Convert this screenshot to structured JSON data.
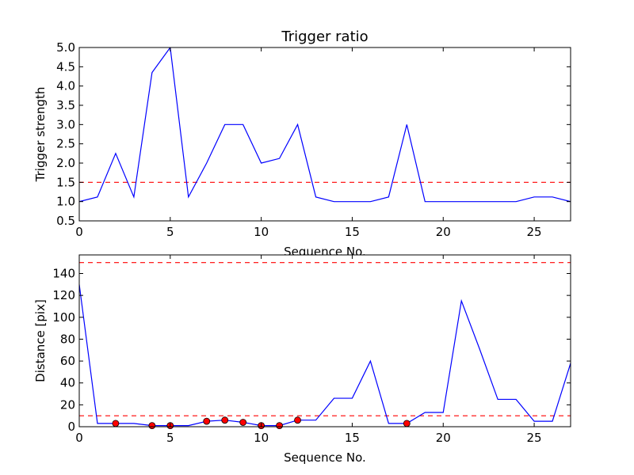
{
  "colors": {
    "line": "#0000ff",
    "threshold": "#ff0000",
    "marker_fill": "#ff0000",
    "marker_edge": "#000000",
    "axes": "#000000",
    "background": "#ffffff"
  },
  "chart_data": [
    {
      "type": "line",
      "title": "Trigger ratio",
      "xlabel": "Sequence No.",
      "ylabel": "Trigger strength",
      "xlim": [
        0,
        27
      ],
      "ylim": [
        0.5,
        5.0
      ],
      "xticks": [
        0,
        5,
        10,
        15,
        20,
        25
      ],
      "xtick_labels": [
        "0",
        "5",
        "10",
        "15",
        "20",
        "25"
      ],
      "yticks": [
        0.5,
        1.0,
        1.5,
        2.0,
        2.5,
        3.0,
        3.5,
        4.0,
        4.5,
        5.0
      ],
      "ytick_labels": [
        "0.5",
        "1.0",
        "1.5",
        "2.0",
        "2.5",
        "3.0",
        "3.5",
        "4.0",
        "4.5",
        "5.0"
      ],
      "grid": false,
      "series": [
        {
          "x": [
            0,
            1,
            2,
            3,
            4,
            5,
            6,
            7,
            8,
            9,
            10,
            11,
            12,
            13,
            14,
            15,
            16,
            17,
            18,
            19,
            20,
            21,
            22,
            23,
            24,
            25,
            26,
            27
          ],
          "values": [
            1.0,
            1.12,
            2.25,
            1.12,
            4.35,
            5.0,
            1.12,
            2.0,
            3.0,
            3.0,
            2.0,
            2.12,
            3.0,
            1.12,
            1.0,
            1.0,
            1.0,
            1.12,
            3.0,
            1.0,
            1.0,
            1.0,
            1.0,
            1.0,
            1.0,
            1.12,
            1.12,
            1.0
          ]
        }
      ],
      "hlines": [
        1.5
      ]
    },
    {
      "type": "line",
      "title": "",
      "xlabel": "Sequence No.",
      "ylabel": "Distance [pix]",
      "xlim": [
        0,
        27
      ],
      "ylim": [
        0,
        157
      ],
      "xticks": [
        0,
        5,
        10,
        15,
        20,
        25
      ],
      "xtick_labels": [
        "0",
        "5",
        "10",
        "15",
        "20",
        "25"
      ],
      "yticks": [
        0,
        20,
        40,
        60,
        80,
        100,
        120,
        140
      ],
      "ytick_labels": [
        "0",
        "20",
        "40",
        "60",
        "80",
        "100",
        "120",
        "140"
      ],
      "grid": false,
      "series": [
        {
          "x": [
            0,
            1,
            2,
            3,
            4,
            5,
            6,
            7,
            8,
            9,
            10,
            11,
            12,
            13,
            14,
            15,
            16,
            17,
            18,
            19,
            20,
            21,
            22,
            23,
            24,
            25,
            26,
            27
          ],
          "values": [
            130,
            3,
            3,
            3,
            1,
            1,
            1,
            5,
            6,
            4,
            1,
            1,
            6,
            6,
            26,
            26,
            60,
            3,
            3,
            13,
            13,
            115,
            71,
            25,
            25,
            5,
            5,
            58
          ]
        }
      ],
      "markers": {
        "x": [
          2,
          4,
          5,
          7,
          8,
          9,
          10,
          11,
          12,
          18
        ],
        "values": [
          3,
          1,
          1,
          5,
          6,
          4,
          1,
          1,
          6,
          3
        ]
      },
      "hlines": [
        150,
        10
      ]
    }
  ]
}
